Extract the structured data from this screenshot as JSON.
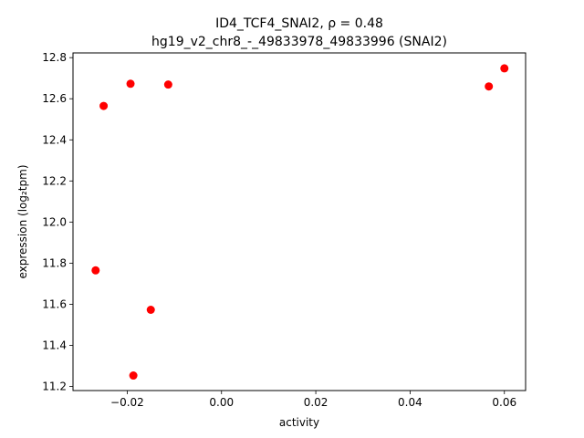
{
  "chart_data": {
    "type": "scatter",
    "title_line1": "ID4_TCF4_SNAI2, ρ = 0.48",
    "title_line2": "hg19_v2_chr8_-_49833978_49833996 (SNAI2)",
    "xlabel": "activity",
    "ylabel": "expression (log₂tpm)",
    "xlim": [
      -0.0315,
      0.0645
    ],
    "ylim": [
      11.18,
      12.823
    ],
    "xticks": [
      -0.02,
      0.0,
      0.02,
      0.04,
      0.06
    ],
    "xtick_labels": [
      "−0.02",
      "0.00",
      "0.02",
      "0.04",
      "0.06"
    ],
    "yticks": [
      11.2,
      11.4,
      11.6,
      11.8,
      12.0,
      12.2,
      12.4,
      12.6,
      12.8
    ],
    "ytick_labels": [
      "11.2",
      "11.4",
      "11.6",
      "11.8",
      "12.0",
      "12.2",
      "12.4",
      "12.6",
      "12.8"
    ],
    "marker_color": "#ff0000",
    "points": [
      {
        "x": -0.0267,
        "y": 11.765
      },
      {
        "x": -0.025,
        "y": 12.565
      },
      {
        "x": -0.0193,
        "y": 12.673
      },
      {
        "x": -0.0187,
        "y": 11.253
      },
      {
        "x": -0.015,
        "y": 11.573
      },
      {
        "x": -0.0113,
        "y": 12.669
      },
      {
        "x": 0.0567,
        "y": 12.66
      },
      {
        "x": 0.06,
        "y": 12.748
      }
    ]
  }
}
